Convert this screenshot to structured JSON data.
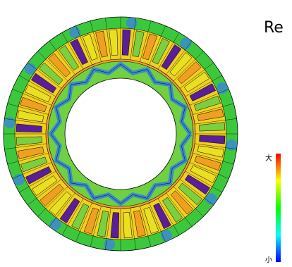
{
  "header": {
    "title": "Re"
  },
  "colorbar": {
    "max_label": "大",
    "min_label": "小"
  }
}
